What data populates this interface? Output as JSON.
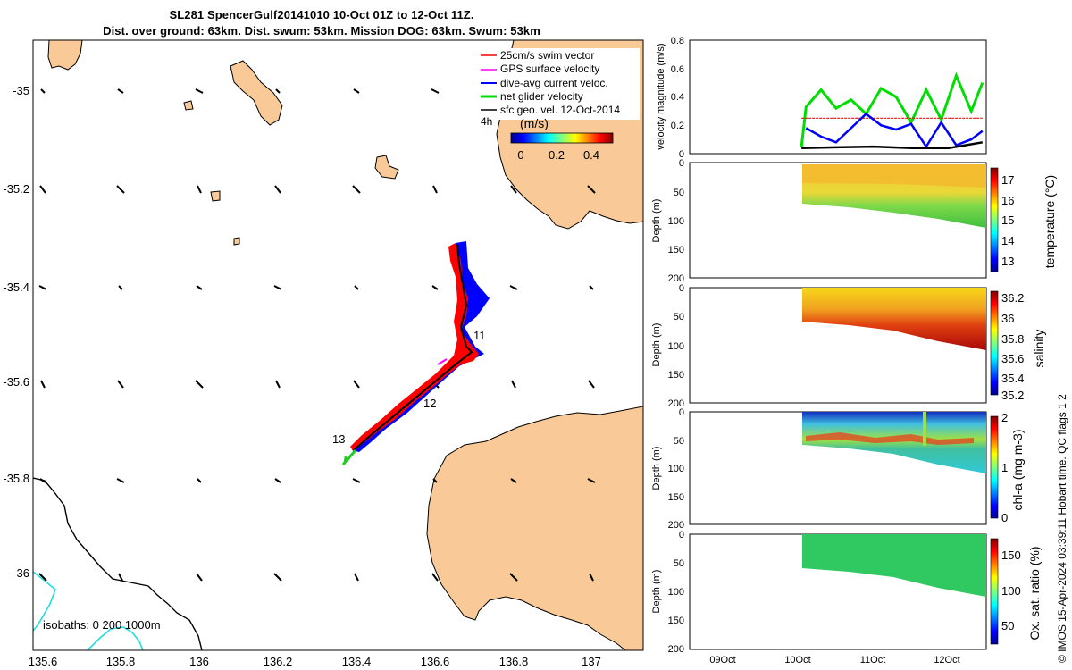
{
  "title_line1": "SL281 SpencerGulf20141010 10-Oct 01Z to 12-Oct 11Z.",
  "title_line2": "Dist. over ground: 63km. Dist. swum: 53km. Mission DOG: 63km. Swum: 53km",
  "copyright": "© IMOS 15-Apr-2024 03:39:11 Hobart time. QC flags 1  2",
  "map": {
    "x_ticks": [
      "135.6",
      "135.8",
      "136",
      "136.2",
      "136.4",
      "136.6",
      "136.8",
      "137"
    ],
    "y_ticks": [
      "-35",
      "-35.2",
      "-35.4",
      "-35.6",
      "-35.8",
      "-36"
    ],
    "legend": [
      {
        "label": "25cm/s swim vector",
        "color": "#ff0000"
      },
      {
        "label": "GPS surface velocity",
        "color": "#ff00ff"
      },
      {
        "label": "dive-avg current veloc.",
        "color": "#0000ff"
      },
      {
        "label": "net glider velocity",
        "color": "#00dd00"
      },
      {
        "label": "sfc geo. vel. 12-Oct-2014",
        "color": "#000000"
      }
    ],
    "legend_note": "4h",
    "colorbar_unit": "(m/s)",
    "colorbar_ticks": [
      "0",
      "0.2",
      "0.4"
    ],
    "day_labels": [
      "11",
      "12",
      "13"
    ],
    "isobaths_label": "isobaths: 0   200   1000m",
    "land_color": "#f9c997",
    "isobath_colors": [
      "#000000",
      "#22dddd"
    ]
  },
  "chart_data": [
    {
      "type": "line",
      "ylabel": "velocity magnitude (m/s)",
      "ylim": [
        0,
        0.8
      ],
      "y_ticks": [
        "0",
        "0.2",
        "0.4",
        "0.6",
        "0.8"
      ],
      "x_ticks": [
        "09Oct",
        "10Oct",
        "11Oct",
        "12Oct"
      ],
      "series": [
        {
          "color": "#00dd00",
          "x": [
            10.04,
            10.1,
            10.3,
            10.5,
            10.7,
            10.9,
            11.1,
            11.3,
            11.5,
            11.7,
            11.9,
            12.1,
            12.3,
            12.45
          ],
          "y": [
            0.05,
            0.33,
            0.45,
            0.32,
            0.38,
            0.28,
            0.46,
            0.4,
            0.22,
            0.45,
            0.24,
            0.55,
            0.3,
            0.5
          ]
        },
        {
          "color": "#ff0000",
          "x": [
            10.04,
            12.45
          ],
          "y": [
            0.25,
            0.25
          ]
        },
        {
          "color": "#0000ff",
          "x": [
            10.1,
            10.3,
            10.5,
            10.7,
            10.9,
            11.1,
            11.3,
            11.5,
            11.7,
            11.9,
            12.1,
            12.3,
            12.45
          ],
          "y": [
            0.18,
            0.12,
            0.08,
            0.18,
            0.28,
            0.2,
            0.17,
            0.21,
            0.05,
            0.22,
            0.06,
            0.1,
            0.16
          ]
        },
        {
          "color": "#000000",
          "x": [
            10.04,
            10.5,
            11.0,
            11.5,
            12.0,
            12.45
          ],
          "y": [
            0.04,
            0.045,
            0.05,
            0.04,
            0.04,
            0.08
          ]
        }
      ]
    },
    {
      "type": "heatmap",
      "ylabel": "Depth (m)",
      "clabel": "temperature (°C)",
      "ylim": [
        0,
        200
      ],
      "y_ticks": [
        "0",
        "50",
        "100",
        "150",
        "200"
      ],
      "c_ticks": [
        "13",
        "14",
        "15",
        "16",
        "17"
      ]
    },
    {
      "type": "heatmap",
      "ylabel": "Depth (m)",
      "clabel": "salinity",
      "ylim": [
        0,
        200
      ],
      "y_ticks": [
        "0",
        "50",
        "100",
        "150",
        "200"
      ],
      "c_ticks": [
        "35.2",
        "35.4",
        "35.6",
        "35.8",
        "36",
        "36.2"
      ]
    },
    {
      "type": "heatmap",
      "ylabel": "Depth (m)",
      "clabel": "chl-a (mg m-3)",
      "ylim": [
        0,
        200
      ],
      "y_ticks": [
        "0",
        "50",
        "100",
        "150",
        "200"
      ],
      "c_ticks": [
        "0",
        "1",
        "2"
      ]
    },
    {
      "type": "heatmap",
      "ylabel": "Depth (m)",
      "clabel": "Ox. sat. ratio (%)",
      "ylim": [
        0,
        200
      ],
      "y_ticks": [
        "0",
        "50",
        "100",
        "150",
        "200"
      ],
      "c_ticks": [
        "50",
        "100",
        "150"
      ],
      "x_ticks": [
        "09Oct",
        "10Oct",
        "11Oct",
        "12Oct"
      ]
    }
  ]
}
